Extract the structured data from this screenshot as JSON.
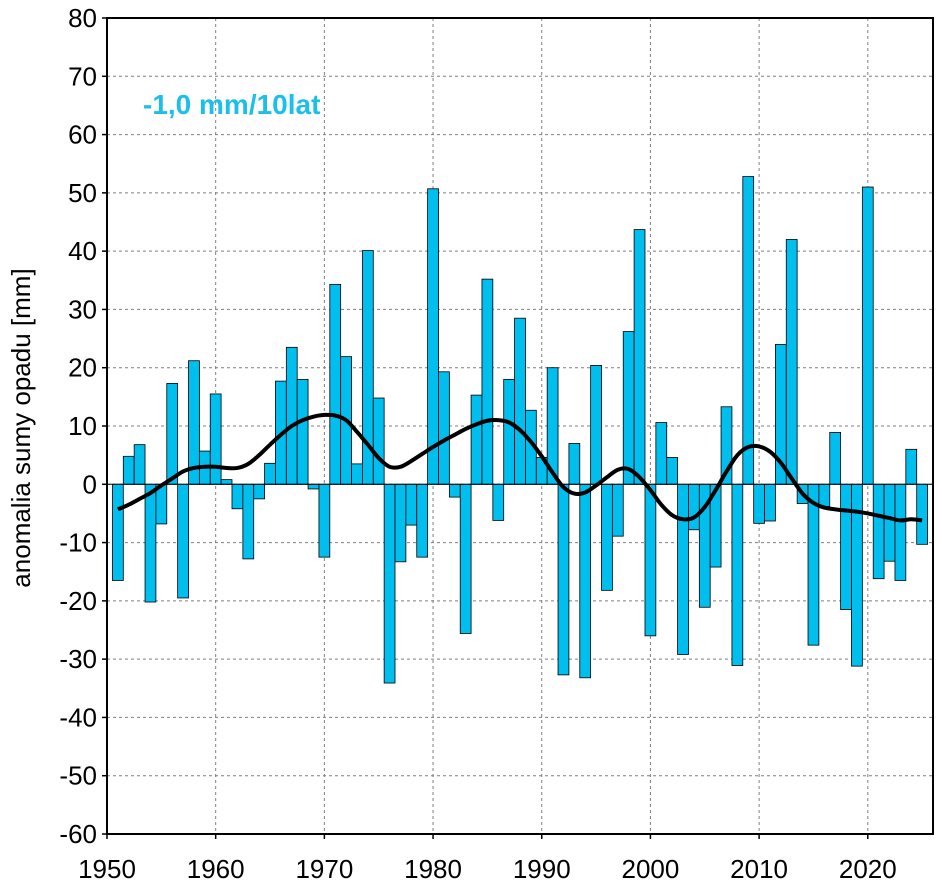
{
  "chart_data": {
    "type": "bar",
    "annotation": "-1,0 mm/10lat",
    "ylabel": "anomalia sumy opadu [mm]",
    "xlabel": "",
    "xlim": [
      1950,
      2026
    ],
    "ylim": [
      -60,
      80
    ],
    "x_ticks": [
      "1950",
      "1960",
      "1970",
      "1980",
      "1990",
      "2000",
      "2010",
      "2020"
    ],
    "y_ticks": [
      "80",
      "70",
      "60",
      "50",
      "40",
      "30",
      "20",
      "10",
      "0",
      "-10",
      "-20",
      "-30",
      "-40",
      "-50",
      "-60"
    ],
    "grid": true,
    "colors": {
      "bars": "#00BFEF",
      "bar_edge": "#000000",
      "trend": "#000000",
      "annotation": "#1BBFEA"
    },
    "series": [
      {
        "type": "bar",
        "x": [
          1951,
          1952,
          1953,
          1954,
          1955,
          1956,
          1957,
          1958,
          1959,
          1960,
          1961,
          1962,
          1963,
          1964,
          1965,
          1966,
          1967,
          1968,
          1969,
          1970,
          1971,
          1972,
          1973,
          1974,
          1975,
          1976,
          1977,
          1978,
          1979,
          1980,
          1981,
          1982,
          1983,
          1984,
          1985,
          1986,
          1987,
          1988,
          1989,
          1990,
          1991,
          1992,
          1993,
          1994,
          1995,
          1996,
          1997,
          1998,
          1999,
          2000,
          2001,
          2002,
          2003,
          2004,
          2005,
          2006,
          2007,
          2008,
          2009,
          2010,
          2011,
          2012,
          2013,
          2014,
          2015,
          2016,
          2017,
          2018,
          2019,
          2020,
          2021,
          2022,
          2023,
          2024,
          2025
        ],
        "values": [
          -16.5,
          4.8,
          6.8,
          -20.2,
          -6.8,
          17.3,
          -19.5,
          21.2,
          5.7,
          15.5,
          0.8,
          -4.2,
          -12.8,
          -2.5,
          3.6,
          17.7,
          23.5,
          18.0,
          -0.8,
          -12.5,
          34.3,
          21.9,
          3.5,
          40.1,
          14.8,
          -34.1,
          -13.3,
          -7.0,
          -12.5,
          50.7,
          19.3,
          -2.2,
          -25.6,
          15.3,
          35.2,
          -6.2,
          18.0,
          28.5,
          12.7,
          4.6,
          20.0,
          -32.7,
          7.0,
          -33.2,
          20.4,
          -18.2,
          -8.9,
          26.2,
          43.7,
          -26.0,
          10.6,
          4.6,
          -29.2,
          -7.8,
          -21.1,
          -14.2,
          13.3,
          -31.1,
          52.8,
          -6.7,
          -6.3,
          24.0,
          42.0,
          -3.3,
          -27.6,
          -3.8,
          8.9,
          -21.5,
          -31.2,
          51.0,
          -16.2,
          -13.2,
          -16.5,
          6.0,
          -10.3
        ]
      },
      {
        "type": "line",
        "x": [
          1951,
          1952,
          1953,
          1954,
          1955,
          1956,
          1957,
          1958,
          1959,
          1960,
          1961,
          1962,
          1963,
          1964,
          1965,
          1966,
          1967,
          1968,
          1969,
          1970,
          1971,
          1972,
          1973,
          1974,
          1975,
          1976,
          1977,
          1978,
          1979,
          1980,
          1981,
          1982,
          1983,
          1984,
          1985,
          1986,
          1987,
          1988,
          1989,
          1990,
          1991,
          1992,
          1993,
          1994,
          1995,
          1996,
          1997,
          1998,
          1999,
          2000,
          2001,
          2002,
          2003,
          2004,
          2005,
          2006,
          2007,
          2008,
          2009,
          2010,
          2011,
          2012,
          2013,
          2014,
          2015,
          2016,
          2017,
          2018,
          2019,
          2020,
          2021,
          2022,
          2023,
          2024,
          2025
        ],
        "values": [
          -4.3,
          -3.5,
          -2.5,
          -1.5,
          -0.2,
          1.0,
          2.2,
          2.8,
          3.0,
          3.0,
          2.8,
          2.8,
          3.5,
          5.0,
          6.8,
          8.5,
          10.0,
          11.0,
          11.6,
          11.9,
          11.8,
          11.0,
          9.0,
          6.8,
          4.5,
          3.0,
          3.0,
          4.0,
          5.2,
          6.4,
          7.5,
          8.5,
          9.5,
          10.3,
          10.9,
          11.0,
          10.6,
          9.3,
          7.3,
          4.8,
          2.0,
          -0.5,
          -1.6,
          -1.4,
          -0.2,
          1.2,
          2.5,
          2.6,
          1.2,
          -1.0,
          -3.5,
          -5.3,
          -6.0,
          -5.7,
          -3.9,
          -1.0,
          2.2,
          5.0,
          6.4,
          6.5,
          5.6,
          3.7,
          1.0,
          -1.6,
          -3.2,
          -4.0,
          -4.3,
          -4.5,
          -4.7,
          -5.0,
          -5.4,
          -5.8,
          -6.2,
          -6.0,
          -6.2
        ]
      }
    ]
  }
}
